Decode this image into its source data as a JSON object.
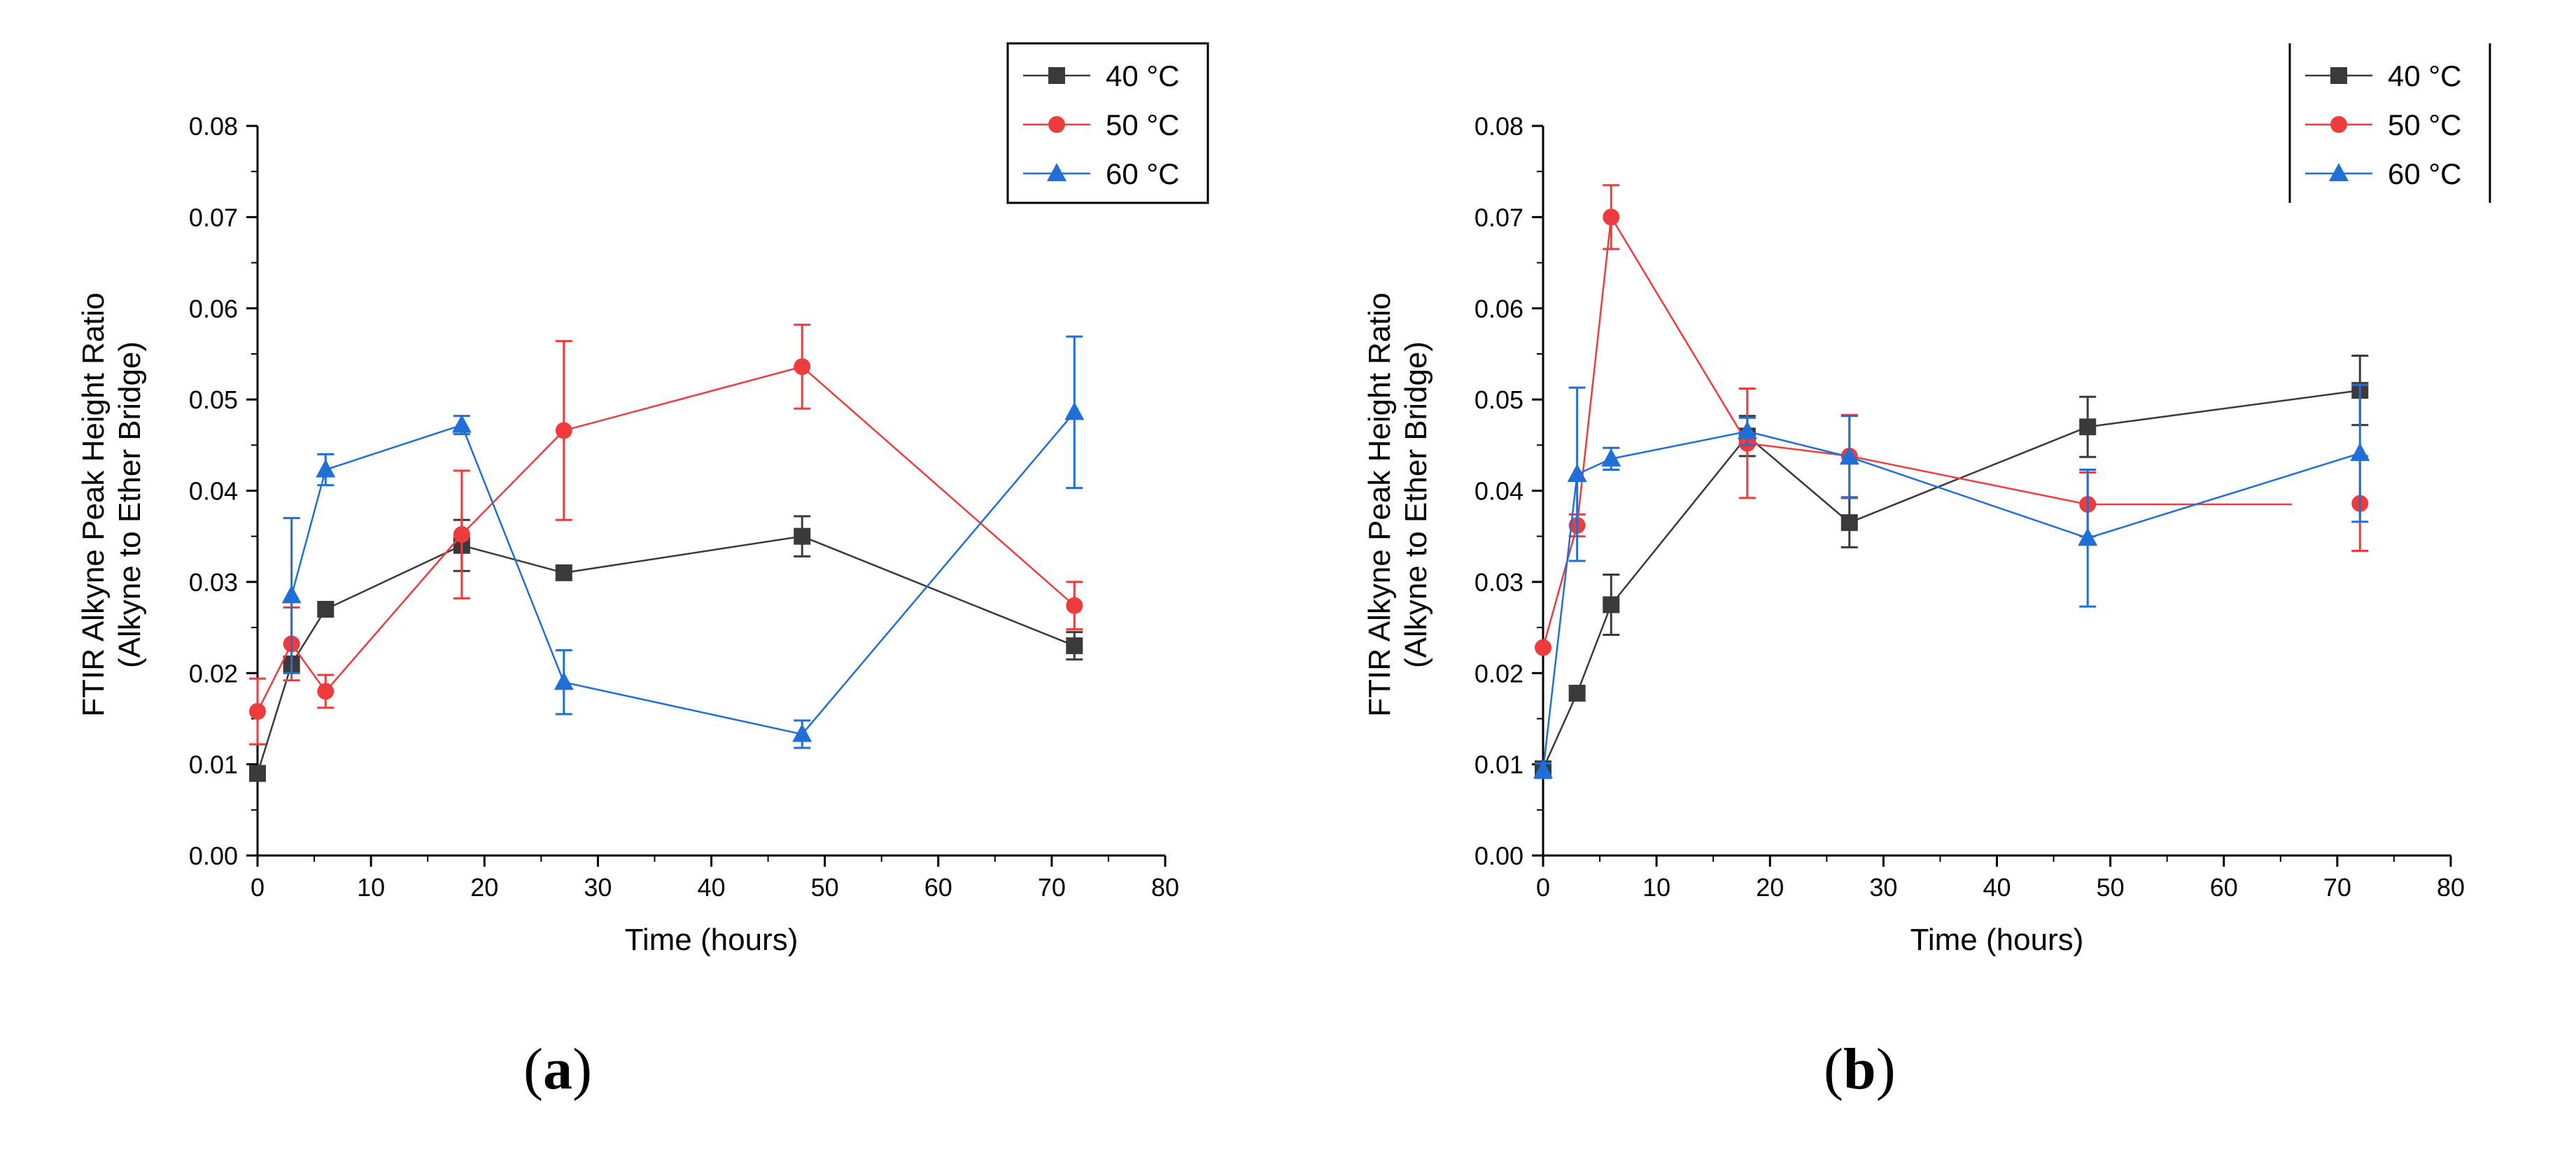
{
  "figure": {
    "panel_a_letter": "a",
    "panel_b_letter": "b",
    "paren_open": "(",
    "paren_close": ")"
  },
  "colors": {
    "s40": "#3a3a3a",
    "s50": "#ef3b3b",
    "s60": "#1f6fd6"
  },
  "chart_data": [
    {
      "type": "line",
      "panel": "a",
      "title": "",
      "xlabel": "Time (hours)",
      "ylabel_line1": "FTIR Alkyne Peak Height Ratio",
      "ylabel_line2": "(Alkyne to Ether Bridge)",
      "xlim": [
        0,
        80
      ],
      "ylim": [
        0,
        0.08
      ],
      "xticks": [
        "0",
        "10",
        "20",
        "30",
        "40",
        "50",
        "60",
        "70",
        "80"
      ],
      "yticks": [
        "0.00",
        "0.01",
        "0.02",
        "0.03",
        "0.04",
        "0.05",
        "0.06",
        "0.07",
        "0.08"
      ],
      "legend_position": "top-right",
      "legend_frame": "box",
      "series": [
        {
          "name": "40 °C",
          "marker": "square",
          "color": "#3a3a3a",
          "x": [
            0,
            3,
            6,
            18,
            27,
            48,
            72
          ],
          "y": [
            0.009,
            0.021,
            0.027,
            0.034,
            0.031,
            0.035,
            0.023
          ],
          "err": [
            0.0008,
            0.0008,
            0.0007,
            0.0028,
            0.0007,
            0.0022,
            0.0015
          ]
        },
        {
          "name": "50 °C",
          "marker": "circle",
          "color": "#ef3b3b",
          "x": [
            0,
            3,
            6,
            18,
            27,
            48,
            72
          ],
          "y": [
            0.0158,
            0.0232,
            0.018,
            0.0352,
            0.0466,
            0.0536,
            0.0274
          ],
          "err": [
            0.0036,
            0.004,
            0.0018,
            0.007,
            0.0098,
            0.0046,
            0.0026
          ]
        },
        {
          "name": "60 °C",
          "marker": "triangle",
          "color": "#1f6fd6",
          "x": [
            3,
            6,
            18,
            27,
            48,
            72
          ],
          "y": [
            0.0285,
            0.0423,
            0.0472,
            0.019,
            0.0133,
            0.0486
          ],
          "err": [
            0.0085,
            0.0017,
            0.001,
            0.0035,
            0.0015,
            0.0083
          ]
        }
      ]
    },
    {
      "type": "line",
      "panel": "b",
      "title": "",
      "xlabel": "Time (hours)",
      "ylabel_line1": "FTIR Alkyne Peak Height Ratio",
      "ylabel_line2": "(Alkyne to Ether Bridge)",
      "xlim": [
        0,
        80
      ],
      "ylim": [
        0,
        0.08
      ],
      "xticks": [
        "0",
        "10",
        "20",
        "30",
        "40",
        "50",
        "60",
        "70",
        "80"
      ],
      "yticks": [
        "0.00",
        "0.01",
        "0.02",
        "0.03",
        "0.04",
        "0.05",
        "0.06",
        "0.07",
        "0.08"
      ],
      "legend_position": "top-right",
      "legend_frame": "side-lines",
      "series": [
        {
          "name": "40 °C",
          "marker": "square",
          "color": "#3a3a3a",
          "x": [
            0,
            3,
            6,
            18,
            27,
            48,
            72
          ],
          "y": [
            0.0095,
            0.0178,
            0.0275,
            0.046,
            0.0365,
            0.047,
            0.051
          ],
          "err": [
            0.0008,
            0.0008,
            0.0033,
            0.0022,
            0.0027,
            0.0033,
            0.0038
          ]
        },
        {
          "name": "50 °C",
          "marker": "circle",
          "color": "#ef3b3b",
          "x": [
            0,
            3,
            6,
            18,
            27,
            48,
            66
          ],
          "y": [
            0.0228,
            0.0362,
            0.07,
            0.0452,
            0.0438,
            0.0385,
            0.0385
          ],
          "err": [
            0,
            0.0012,
            0.0035,
            0.006,
            0.0045,
            0.0035,
            0
          ],
          "extra_points": [
            {
              "x": 72,
              "y": 0.0386,
              "err": 0.0052
            }
          ]
        },
        {
          "name": "60 °C",
          "marker": "triangle",
          "color": "#1f6fd6",
          "x": [
            0,
            3,
            6,
            18,
            27,
            48,
            72
          ],
          "y": [
            0.0093,
            0.0418,
            0.0435,
            0.0465,
            0.0437,
            0.0348,
            0.0441
          ],
          "err": [
            0.0008,
            0.0095,
            0.0012,
            0.0015,
            0.0045,
            0.0075,
            0.0075
          ]
        }
      ]
    }
  ]
}
